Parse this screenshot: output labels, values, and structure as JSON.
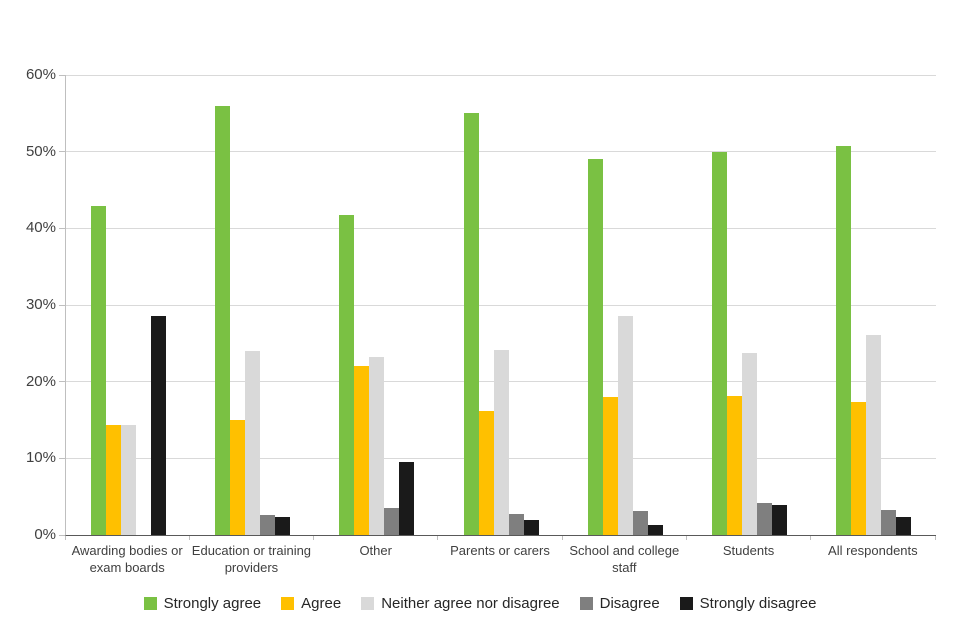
{
  "chart_data": {
    "type": "bar",
    "title": "",
    "xlabel": "",
    "ylabel": "",
    "ylim": [
      0,
      60
    ],
    "yticks": [
      0,
      10,
      20,
      30,
      40,
      50,
      60
    ],
    "ytick_suffix": "%",
    "grid": true,
    "legend_position": "bottom",
    "categories": [
      "Awarding bodies or exam boards",
      "Education or training providers",
      "Other",
      "Parents or carers",
      "School and college staff",
      "Students",
      "All respondents"
    ],
    "series": [
      {
        "name": "Strongly agree",
        "color": "#7ac143",
        "values": [
          42.9,
          56.0,
          41.7,
          55.0,
          49.0,
          50.0,
          50.7
        ]
      },
      {
        "name": "Agree",
        "color": "#ffc000",
        "values": [
          14.3,
          15.0,
          22.0,
          16.2,
          18.0,
          18.1,
          17.4
        ]
      },
      {
        "name": "Neither agree nor disagree",
        "color": "#d9d9d9",
        "values": [
          14.3,
          24.0,
          23.2,
          24.1,
          28.6,
          23.7,
          26.1
        ]
      },
      {
        "name": "Disagree",
        "color": "#7f7f7f",
        "values": [
          0,
          2.6,
          3.5,
          2.7,
          3.2,
          4.2,
          3.3
        ]
      },
      {
        "name": "Strongly disagree",
        "color": "#1a1a1a",
        "values": [
          28.6,
          2.3,
          9.5,
          1.9,
          1.3,
          3.9,
          2.4
        ]
      }
    ]
  }
}
